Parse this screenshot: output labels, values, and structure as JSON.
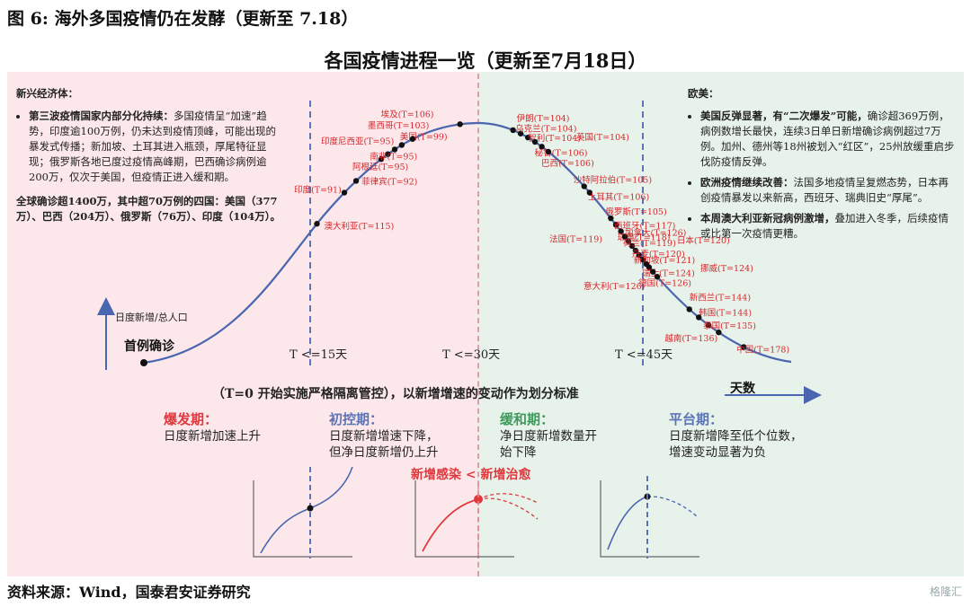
{
  "figure_title": "图 6:  海外多国疫情仍在发酵（更新至 7.18）",
  "chart_title": "各国疫情进程一览（更新至7月18日）",
  "left_panel": {
    "heading": "新兴经济体：",
    "bullet1_bold": "第三波疫情国家内部分化持续：",
    "bullet1_text": "多国疫情呈“加速”趋势，印度逾100万例，仍未达到疫情顶峰，可能出现的暴发式传播；新加坡、土耳其进入瓶颈，厚尾特征显现；俄罗斯各地已度过疫情高峰期，巴西确诊病例逾200万，仅次于美国，但疫情正进入缓和期。",
    "summary": "全球确诊超1400万，其中超70万例的四国：美国（377万）、巴西（204万）、俄罗斯（76万）、印度（104万）。"
  },
  "right_panel": {
    "heading": "欧美：",
    "bullet1_bold": "美国反弹显著，有“二次爆发”可能，",
    "bullet1_text": "确诊超369万例，病例数增长最快，连续3日单日新增确诊病例超过7万例。加州、德州等18州被划入“红区”，25州放缓重启步伐防疫情反弹。",
    "bullet2_bold": "欧洲疫情继续改善：",
    "bullet2_text": "法国多地疫情呈复燃态势，日本再创疫情暴发以来新高，西班牙、瑞典旧史“厚尾”。",
    "bullet3_bold": "本周澳大利亚新冠病例激增，",
    "bullet3_text": "叠加进入冬季，后续疫情或比第一次疫情更糟。"
  },
  "axis": {
    "ylabel": "日度新增/总人口",
    "xlabel": "天数",
    "first_case": "首例确诊",
    "t15": "T <=15天",
    "t30": "T <=30天",
    "t45": "T <=45天"
  },
  "rule_text": "（T=0 开始实施严格隔离管控），以新增增速的变动作为划分标准",
  "infect_eq": "新增感染 < 新增治愈",
  "phases": [
    {
      "title": "爆发期：",
      "desc1": "日度新增加速上升",
      "desc2": "",
      "color": "#e0383d"
    },
    {
      "title": "初控期：",
      "desc1": "日度新增增速下降，",
      "desc2": "但净日度新增仍上升",
      "color": "#5b74b8"
    },
    {
      "title": "缓和期：",
      "desc1": "净日度新增数量开",
      "desc2": "始下降",
      "color": "#3d9a5a"
    },
    {
      "title": "平台期：",
      "desc1": "日度新增降至低个位数，",
      "desc2": "增速变动显著为负",
      "color": "#5b74b8"
    }
  ],
  "source": "资料来源：Wind，国泰君安证券研究",
  "watermark": "格隆汇",
  "chart_data": {
    "type": "line",
    "title": "各国疫情进程一览（更新至7月18日）",
    "xlabel": "天数",
    "ylabel": "日度新增/总人口",
    "curve": "epidemic curve: rise, peak near T≈106, decline to plateau",
    "vertical_markers": [
      "T <=15天",
      "T <=30天",
      "T <=45天"
    ],
    "countries": [
      {
        "name": "澳大利亚",
        "T": 115,
        "side": "rise"
      },
      {
        "name": "印度",
        "T": 91,
        "side": "rise"
      },
      {
        "name": "菲律宾",
        "T": 92,
        "side": "rise"
      },
      {
        "name": "阿根廷",
        "T": 95,
        "side": "rise"
      },
      {
        "name": "南非",
        "T": 95,
        "side": "rise"
      },
      {
        "name": "印度尼西亚",
        "T": 95,
        "side": "rise"
      },
      {
        "name": "美国",
        "T": 99,
        "side": "rise"
      },
      {
        "name": "墨西哥",
        "T": 103,
        "side": "rise"
      },
      {
        "name": "埃及",
        "T": 106,
        "side": "rise"
      },
      {
        "name": "伊朗",
        "T": 104,
        "side": "fall"
      },
      {
        "name": "乌克兰",
        "T": 104,
        "side": "fall"
      },
      {
        "name": "智利",
        "T": 104,
        "side": "fall"
      },
      {
        "name": "英国",
        "T": 104,
        "side": "fall"
      },
      {
        "name": "秘鲁",
        "T": 106,
        "side": "fall"
      },
      {
        "name": "巴西",
        "T": 106,
        "side": "fall"
      },
      {
        "name": "沙特阿拉伯",
        "T": 105,
        "side": "fall"
      },
      {
        "name": "土耳其",
        "T": 106,
        "side": "fall"
      },
      {
        "name": "俄罗斯",
        "T": 105,
        "side": "fall"
      },
      {
        "name": "西班牙",
        "T": 117,
        "side": "fall"
      },
      {
        "name": "瑞典",
        "T": 118,
        "side": "fall"
      },
      {
        "name": "法国",
        "T": 119,
        "side": "fall"
      },
      {
        "name": "加拿大",
        "T": 126,
        "side": "fall"
      },
      {
        "name": "荷兰",
        "T": 119,
        "side": "fall"
      },
      {
        "name": "日本",
        "T": 120,
        "side": "fall"
      },
      {
        "name": "丹麦",
        "T": 120,
        "side": "fall"
      },
      {
        "name": "新加坡",
        "T": 121,
        "side": "fall"
      },
      {
        "name": "挪威",
        "T": 124,
        "side": "fall"
      },
      {
        "name": "瑞士",
        "T": 124,
        "side": "fall"
      },
      {
        "name": "德国",
        "T": 126,
        "side": "fall"
      },
      {
        "name": "意大利",
        "T": 126,
        "side": "fall"
      },
      {
        "name": "新西兰",
        "T": 144,
        "side": "fall"
      },
      {
        "name": "韩国",
        "T": 144,
        "side": "fall"
      },
      {
        "name": "泰国",
        "T": 135,
        "side": "fall"
      },
      {
        "name": "越南",
        "T": 136,
        "side": "fall"
      },
      {
        "name": "中国",
        "T": 178,
        "side": "fall"
      }
    ]
  }
}
